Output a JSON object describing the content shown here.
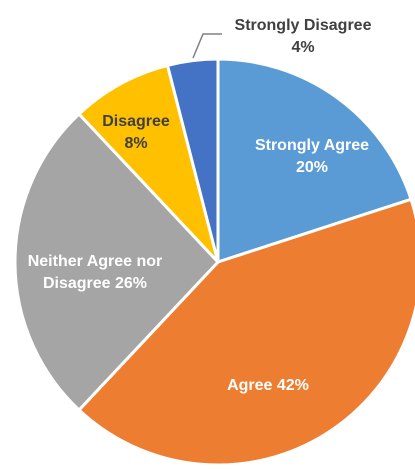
{
  "chart_data": {
    "type": "pie",
    "title": "",
    "slices": [
      {
        "label": "Strongly Agree",
        "value_label": "20%",
        "value": 20,
        "color": "#5b9bd5",
        "label_color": "#ffffff"
      },
      {
        "label": "Agree",
        "value_label": "42%",
        "value": 42,
        "color": "#ed7d31",
        "label_color": "#ffffff"
      },
      {
        "label": "Neither Agree nor Disagree",
        "value_label": "26%",
        "value": 26,
        "color": "#a5a5a5",
        "label_color": "#ffffff"
      },
      {
        "label": "Disagree",
        "value_label": "8%",
        "value": 8,
        "color": "#ffc000",
        "label_color": "#404040"
      },
      {
        "label": "Strongly Disagree",
        "value_label": "4%",
        "value": 4,
        "color": "#4472c4",
        "label_color": "#404040"
      }
    ],
    "slice_border_color": "#ffffff",
    "leader_line_color": "#808080",
    "legend": "none"
  }
}
